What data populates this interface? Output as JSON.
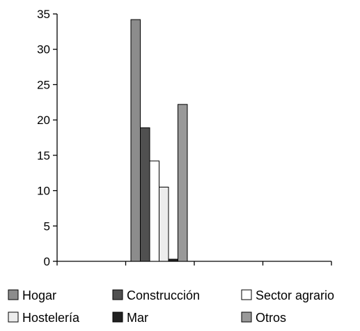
{
  "chart_data": {
    "type": "bar",
    "title": "",
    "xlabel": "",
    "ylabel": "",
    "ylim": [
      0,
      35
    ],
    "yticks": [
      0,
      5,
      10,
      15,
      20,
      25,
      30,
      35
    ],
    "x_tick_count": 4,
    "grid": false,
    "legend_position": "bottom",
    "series": [
      {
        "name": "Hogar",
        "value": 34.2,
        "color": "#8c8c8c"
      },
      {
        "name": "Construcción",
        "value": 18.9,
        "color": "#505050"
      },
      {
        "name": "Sector agrario",
        "value": 14.2,
        "color": "#ffffff"
      },
      {
        "name": "Hostelería",
        "value": 10.5,
        "color": "#ececec"
      },
      {
        "name": "Mar",
        "value": 0.3,
        "color": "#222222"
      },
      {
        "name": "Otros",
        "value": 22.2,
        "color": "#999999"
      }
    ]
  }
}
